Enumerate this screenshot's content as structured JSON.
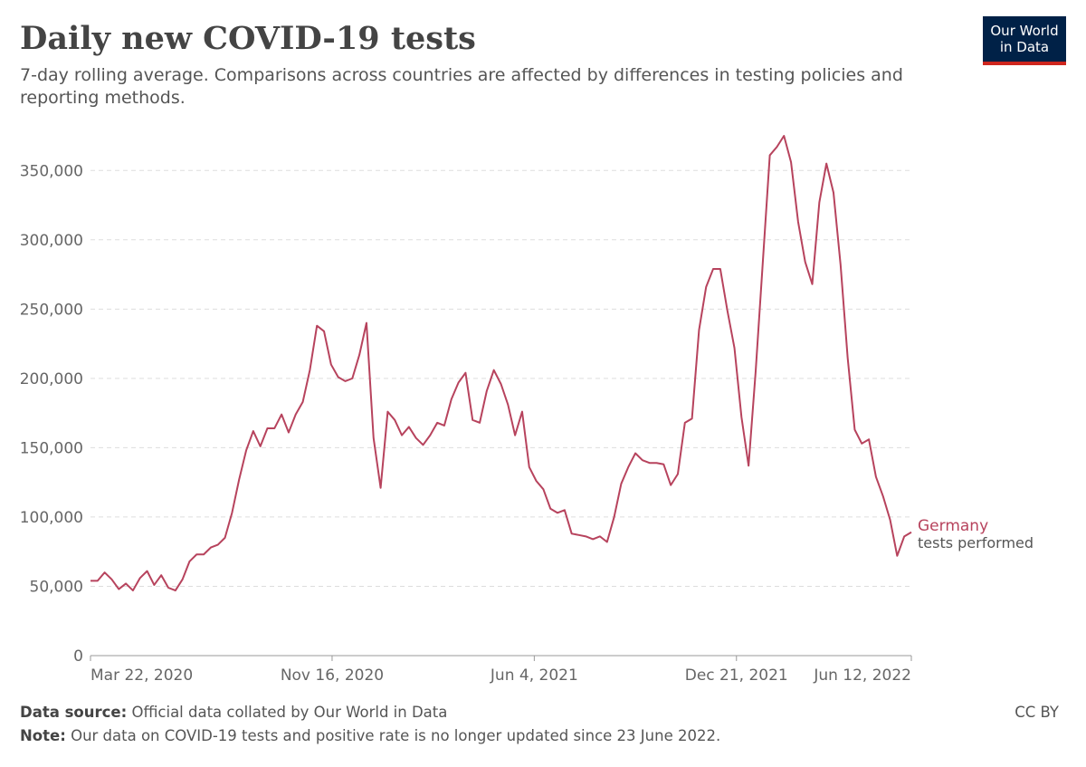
{
  "chart_data": {
    "type": "line",
    "title": "Daily new COVID-19 tests",
    "subtitle": "7-day rolling average. Comparisons across countries are affected by differences in testing policies and reporting methods.",
    "logo": [
      "Our World",
      "in Data"
    ],
    "source": {
      "label": "Data source:",
      "text": "Official data collated by Our World in Data"
    },
    "note": {
      "label": "Note:",
      "text": "Our data on COVID-19 tests and positive rate is no longer updated since 23 June 2022."
    },
    "license": "CC BY",
    "grid": true,
    "xlim": [
      "2020-03-22",
      "2022-06-12"
    ],
    "xticks": [
      {
        "value": "2020-03-22",
        "label": "Mar 22, 2020"
      },
      {
        "value": "2020-11-16",
        "label": "Nov 16, 2020"
      },
      {
        "value": "2021-06-04",
        "label": "Jun 4, 2021"
      },
      {
        "value": "2021-12-21",
        "label": "Dec 21, 2021"
      },
      {
        "value": "2022-06-12",
        "label": "Jun 12, 2022"
      }
    ],
    "ylim": [
      0,
      375000
    ],
    "yticks": [
      0,
      {
        "value": 50000,
        "label": "50,000"
      },
      {
        "value": 100000,
        "label": "100,000"
      },
      {
        "value": 150000,
        "label": "150,000"
      },
      {
        "value": 200000,
        "label": "200,000"
      },
      {
        "value": 250000,
        "label": "250,000"
      },
      {
        "value": 300000,
        "label": "300,000"
      },
      {
        "value": 350000,
        "label": "350,000"
      }
    ],
    "x": [
      "2020-03-22",
      "2020-03-29",
      "2020-04-05",
      "2020-04-12",
      "2020-04-19",
      "2020-04-26",
      "2020-05-03",
      "2020-05-10",
      "2020-05-17",
      "2020-05-24",
      "2020-05-31",
      "2020-06-07",
      "2020-06-14",
      "2020-06-21",
      "2020-06-28",
      "2020-07-05",
      "2020-07-12",
      "2020-07-19",
      "2020-07-26",
      "2020-08-02",
      "2020-08-09",
      "2020-08-16",
      "2020-08-23",
      "2020-08-30",
      "2020-09-06",
      "2020-09-13",
      "2020-09-20",
      "2020-09-27",
      "2020-10-04",
      "2020-10-11",
      "2020-10-18",
      "2020-10-25",
      "2020-11-01",
      "2020-11-08",
      "2020-11-15",
      "2020-11-22",
      "2020-11-29",
      "2020-12-06",
      "2020-12-13",
      "2020-12-20",
      "2020-12-27",
      "2021-01-03",
      "2021-01-10",
      "2021-01-17",
      "2021-01-24",
      "2021-01-31",
      "2021-02-07",
      "2021-02-14",
      "2021-02-21",
      "2021-02-28",
      "2021-03-07",
      "2021-03-14",
      "2021-03-21",
      "2021-03-28",
      "2021-04-04",
      "2021-04-11",
      "2021-04-18",
      "2021-04-25",
      "2021-05-02",
      "2021-05-09",
      "2021-05-16",
      "2021-05-23",
      "2021-05-30",
      "2021-06-06",
      "2021-06-13",
      "2021-06-20",
      "2021-06-27",
      "2021-07-04",
      "2021-07-11",
      "2021-07-18",
      "2021-07-25",
      "2021-08-01",
      "2021-08-08",
      "2021-08-15",
      "2021-08-22",
      "2021-08-29",
      "2021-09-05",
      "2021-09-12",
      "2021-09-19",
      "2021-09-26",
      "2021-10-03",
      "2021-10-10",
      "2021-10-17",
      "2021-10-24",
      "2021-10-31",
      "2021-11-07",
      "2021-11-14",
      "2021-11-21",
      "2021-11-28",
      "2021-12-05",
      "2021-12-12",
      "2021-12-19",
      "2021-12-26",
      "2022-01-02",
      "2022-01-09",
      "2022-01-16",
      "2022-01-23",
      "2022-01-30",
      "2022-02-06",
      "2022-02-13",
      "2022-02-20",
      "2022-02-27",
      "2022-03-06",
      "2022-03-13",
      "2022-03-20",
      "2022-03-27",
      "2022-04-03",
      "2022-04-10",
      "2022-04-17",
      "2022-04-24",
      "2022-05-01",
      "2022-05-08",
      "2022-05-15",
      "2022-05-22",
      "2022-05-29",
      "2022-06-05",
      "2022-06-12"
    ],
    "series": [
      {
        "name": "Germany",
        "unit_label": "tests performed",
        "color": "#b7435d",
        "values": [
          54000,
          54000,
          60000,
          55000,
          48000,
          52000,
          47000,
          56000,
          61000,
          51000,
          58000,
          49000,
          47000,
          55000,
          68000,
          73000,
          73000,
          78000,
          80000,
          85000,
          103000,
          127000,
          148000,
          162000,
          151000,
          164000,
          164000,
          174000,
          161000,
          174000,
          183000,
          206000,
          238000,
          234000,
          210000,
          201000,
          198000,
          200000,
          217000,
          240000,
          157000,
          121000,
          176000,
          170000,
          159000,
          165000,
          157000,
          152000,
          159000,
          168000,
          166000,
          185000,
          197000,
          204000,
          170000,
          168000,
          191000,
          206000,
          196000,
          181000,
          159000,
          176000,
          136000,
          126000,
          120000,
          106000,
          103000,
          105000,
          88000,
          87000,
          86000,
          84000,
          86000,
          82000,
          100000,
          124000,
          136000,
          146000,
          141000,
          139000,
          139000,
          138000,
          123000,
          131000,
          168000,
          171000,
          235000,
          266000,
          279000,
          279000,
          249000,
          222000,
          172000,
          137000,
          205000,
          283000,
          361000,
          367000,
          375000,
          356000,
          313000,
          284000,
          268000,
          327000,
          355000,
          334000,
          282000,
          215000,
          163000,
          153000,
          156000,
          129000,
          115000,
          98000,
          72000,
          86000,
          89000
        ]
      }
    ]
  }
}
